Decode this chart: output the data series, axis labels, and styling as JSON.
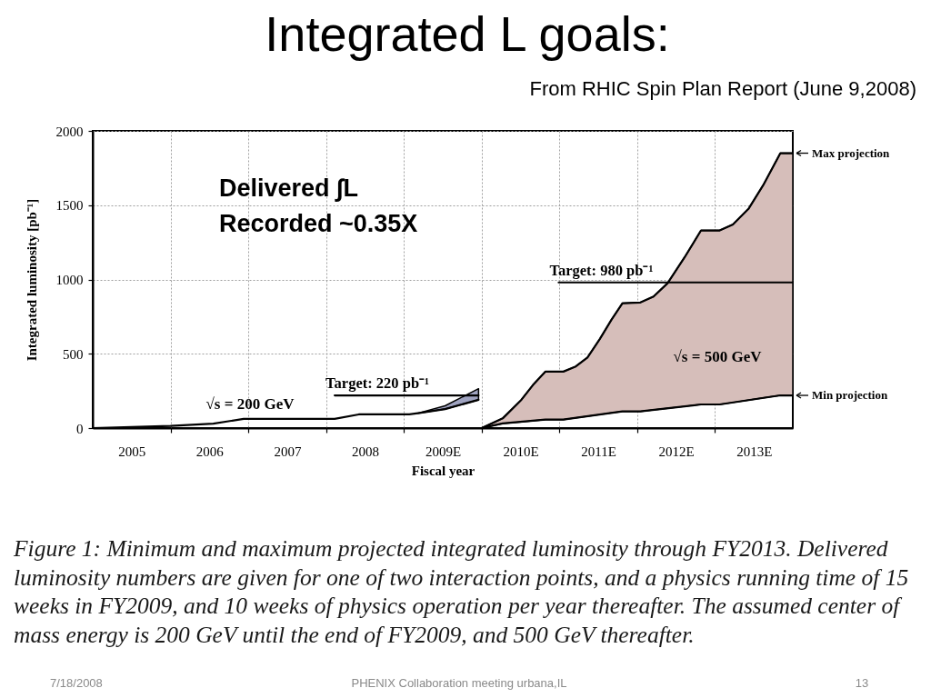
{
  "chart_data": {
    "type": "line",
    "title": "Integrated L goals:",
    "subtitle": "From RHIC Spin Plan Report  (June 9,2008)",
    "xlabel": "Fiscal year",
    "ylabel": "Integrated luminosity [pb⁻¹]",
    "xlim": [
      2004.5,
      2013.5
    ],
    "xticks": [
      2005,
      {
        "value": 2005.5,
        "label": null
      },
      2006,
      {
        "value": 2006.5,
        "label": null
      },
      2007,
      {
        "value": 2007.5,
        "label": null
      },
      2008,
      {
        "value": 2008.5,
        "label": null
      },
      {
        "value": 2009,
        "label": "2009E"
      },
      {
        "value": 2009.5,
        "label": null
      },
      {
        "value": 2010,
        "label": "2010E"
      },
      {
        "value": 2010.5,
        "label": null
      },
      {
        "value": 2011,
        "label": "2011E"
      },
      {
        "value": 2011.5,
        "label": null
      },
      {
        "value": 2012,
        "label": "2012E"
      },
      {
        "value": 2012.5,
        "label": null
      },
      {
        "value": 2013,
        "label": "2013E"
      }
    ],
    "ylim": [
      0,
      2000
    ],
    "yticks": [
      0,
      500,
      1000,
      1500,
      2000
    ],
    "grid": true,
    "legend": "right",
    "series": [
      {
        "color": "#000000",
        "x": [
          2004.5,
          2005.5,
          2006.05,
          2006.44,
          2007.61,
          2007.92,
          2008.57,
          2008.68,
          2009.03,
          2009.46
        ],
        "values": [
          0,
          15,
          30,
          62,
          62,
          92,
          92,
          100,
          128,
          190
        ],
        "lower": [
          null,
          null,
          null,
          null,
          null,
          null,
          null,
          100,
          128,
          190
        ],
        "upper": [
          null,
          null,
          null,
          null,
          null,
          null,
          null,
          100,
          150,
          265
        ]
      },
      {
        "name": "Max projection",
        "color": "#000000",
        "x": [
          2009.5,
          2009.77,
          2010.01,
          2010.16,
          2010.32,
          2010.55,
          2010.71,
          2010.86,
          2011.02,
          2011.17,
          2011.31,
          2011.54,
          2011.71,
          2011.89,
          2012.11,
          2012.32,
          2012.56,
          2012.73,
          2012.93,
          2013.12,
          2013.34,
          2013.5
        ],
        "values": [
          0,
          65,
          190,
          290,
          380,
          380,
          415,
          475,
          600,
          730,
          840,
          845,
          885,
          975,
          1150,
          1330,
          1330,
          1370,
          1475,
          1635,
          1850,
          1850
        ],
        "lower": [
          0,
          31,
          42,
          49,
          57,
          57,
          69,
          79,
          91,
          102,
          112,
          112,
          122,
          133,
          146,
          159,
          159,
          172,
          188,
          203,
          220,
          220
        ],
        "upper": [
          0,
          65,
          190,
          290,
          380,
          380,
          415,
          475,
          600,
          730,
          840,
          845,
          885,
          975,
          1150,
          1330,
          1330,
          1370,
          1475,
          1635,
          1850,
          1850
        ]
      },
      {
        "name": "Min projection",
        "color": "#000000",
        "x": [
          2009.5,
          2009.77,
          2010.32,
          2010.55,
          2011.31,
          2011.54,
          2012.32,
          2012.56,
          2013.34,
          2013.5
        ],
        "values": [
          0,
          31,
          57,
          57,
          112,
          112,
          159,
          159,
          220,
          220
        ]
      },
      {
        "name": "Target: 220 pb⁻¹",
        "color": "#000000",
        "x": [
          2007.61,
          2009.46
        ],
        "values": [
          220,
          220
        ]
      },
      {
        "name": "Target: 980 pb⁻¹",
        "color": "#000000",
        "x": [
          2010.49,
          2013.5
        ],
        "values": [
          980,
          980
        ]
      }
    ],
    "annotations": [
      "Delivered ∫L",
      "Recorded  ~0.35X",
      "√s = 200 GeV",
      "√s = 500 GeV",
      "Figure 1:  Minimum and maximum projected integrated luminosity through FY2013.  Delivered luminosity numbers are given for one of two interaction points, and a physics running time of 15 weeks in FY2009, and 10 weeks of physics operation per year thereafter. The assumed center of mass energy is 200 GeV until the end of FY2009, and 500 GeV thereafter.",
      "7/18/2008",
      "PHENIX Collaboration meeting urbana,IL",
      "13"
    ]
  }
}
